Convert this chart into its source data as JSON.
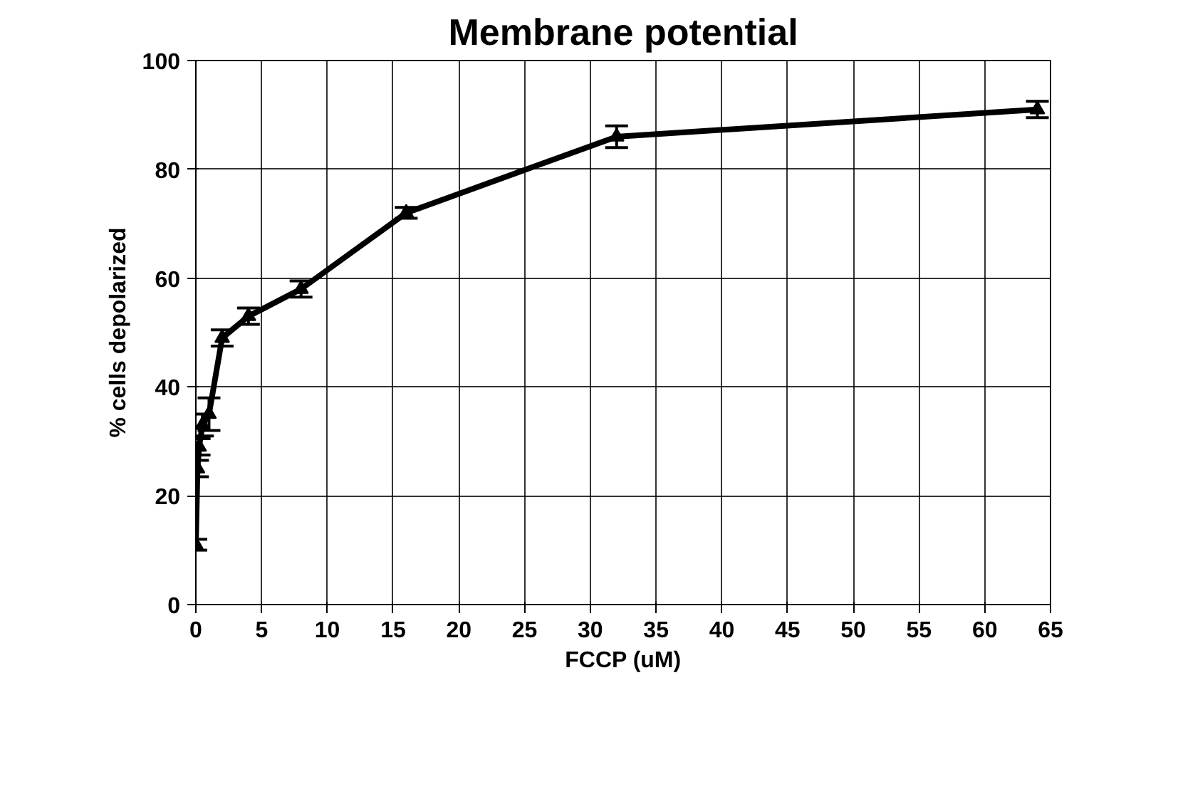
{
  "chart_data": {
    "type": "line",
    "title": "Membrane potential",
    "xlabel": "FCCP (uM)",
    "ylabel": "% cells depolarized",
    "x": [
      0,
      0.125,
      0.25,
      0.5,
      1,
      2,
      4,
      8,
      16,
      32,
      64
    ],
    "series": [
      {
        "color": "#000000",
        "values": [
          11,
          25,
          29,
          33,
          35,
          49,
          53,
          58,
          72,
          86,
          91
        ],
        "errors": [
          1,
          1.5,
          1.5,
          2,
          3,
          1.5,
          1.5,
          1.5,
          1,
          2,
          1.5
        ]
      }
    ],
    "xlim": [
      0,
      65
    ],
    "xticks": [
      0,
      5,
      10,
      15,
      20,
      25,
      30,
      35,
      40,
      45,
      50,
      55,
      60,
      65
    ],
    "ylim": [
      0,
      100
    ],
    "yticks": [
      0,
      20,
      40,
      60,
      80,
      100
    ],
    "grid": true,
    "marker": "triangle",
    "line_style": "solid"
  }
}
